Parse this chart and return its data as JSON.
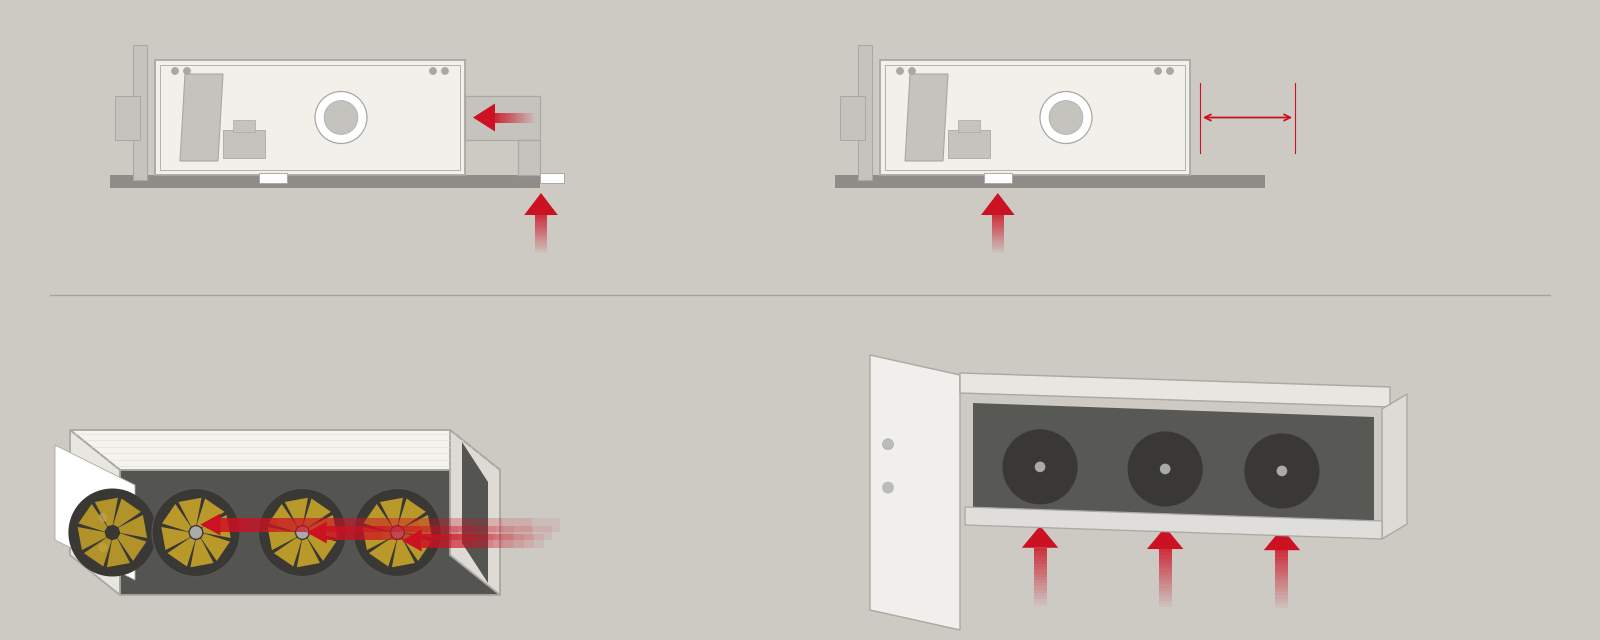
{
  "bg_color": "#cdc9c3",
  "unit_color": "#f2f0eb",
  "outline_color": "#aaa8a3",
  "detail_color": "#c5c3be",
  "floor_color": "#8f8d8a",
  "arrow_color": "#cc1122",
  "dim_color": "#cc1122",
  "dark_color": "#545450",
  "fan_color_outer": "#403e3a",
  "fan_blade_color": "#c8a428",
  "sep_color": "#888883",
  "figsize": [
    16.0,
    6.4
  ],
  "dpi": 100
}
